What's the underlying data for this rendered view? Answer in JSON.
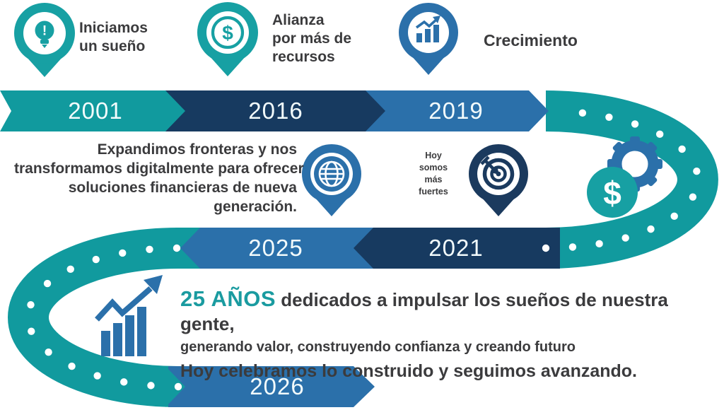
{
  "colors": {
    "teal": "#119a9e",
    "navy": "#173a60",
    "blue": "#2b70aa",
    "accent_teal": "#1a9ba0",
    "text_dark": "#3b3b3d",
    "dot_white": "#ffffff"
  },
  "milestones": [
    {
      "year": "2001",
      "icon": "lightbulb-pin-icon",
      "label_lines": [
        "Iniciamos",
        "un sueño"
      ]
    },
    {
      "year": "2016",
      "icon": "dollar-pin-icon",
      "label_lines": [
        "Alianza",
        "por más de",
        "recursos"
      ]
    },
    {
      "year": "2019",
      "icon": "growth-chart-pin-icon",
      "label_lines": [
        "Crecimiento"
      ]
    },
    {
      "year": "2025",
      "icon": "globe-pin-icon",
      "label_lines": [
        "Expandimos fronteras y nos",
        "transformamos digitalmente para ofrecer",
        "soluciones financieras de nueva",
        "generación."
      ]
    },
    {
      "year": "2021",
      "icon": "target-pin-icon",
      "label_lines": [
        "Hoy",
        "somos",
        "más",
        "fuertes"
      ]
    },
    {
      "year": "2026",
      "icon": "money-gear-icon",
      "label_lines": []
    }
  ],
  "footer": {
    "highlight": "25 AÑOS",
    "line1_rest": "dedicados a impulsar los sueños de nuestra gente,",
    "line2": "generando valor, construyendo confianza y creando futuro",
    "line3": "Hoy celebramos lo construido y seguimos avanzando."
  }
}
